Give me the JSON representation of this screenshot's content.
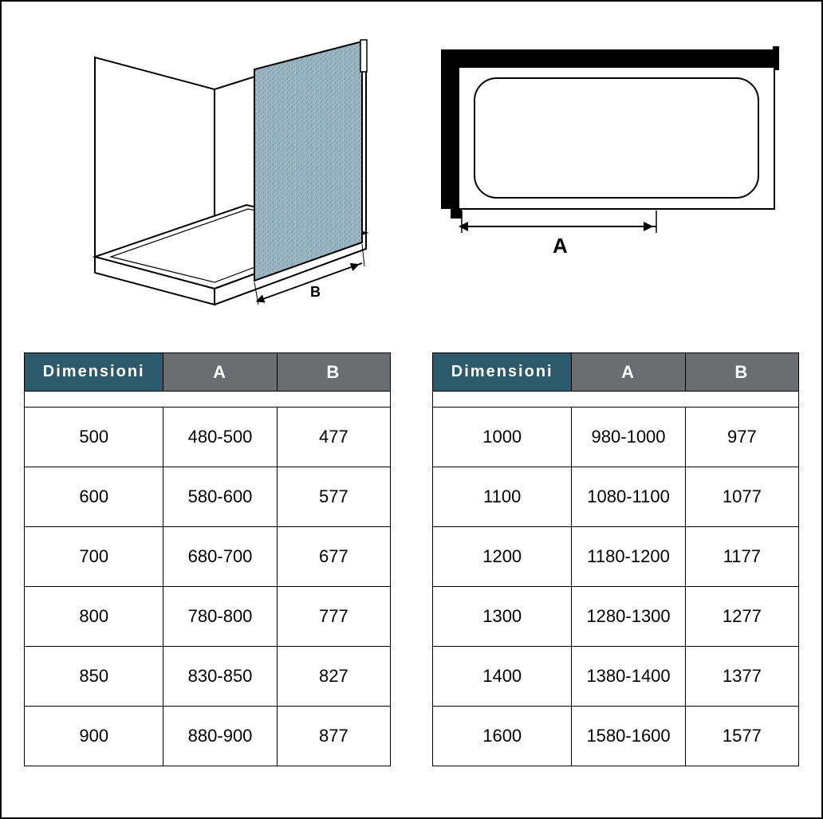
{
  "diagrams": {
    "left_label": "B",
    "right_label": "A"
  },
  "tables": {
    "header_dim_bg": "#2c5a6b",
    "header_col_bg": "#6b6d70",
    "header_text_color": "#ffffff",
    "border_color": "#000000",
    "cell_fontsize": 22,
    "header_fontsize": 22,
    "left": {
      "columns": [
        "Dimensioni",
        "A",
        "B"
      ],
      "rows": [
        [
          "500",
          "480-500",
          "477"
        ],
        [
          "600",
          "580-600",
          "577"
        ],
        [
          "700",
          "680-700",
          "677"
        ],
        [
          "800",
          "780-800",
          "777"
        ],
        [
          "850",
          "830-850",
          "827"
        ],
        [
          "900",
          "880-900",
          "877"
        ]
      ]
    },
    "right": {
      "columns": [
        "Dimensioni",
        "A",
        "B"
      ],
      "rows": [
        [
          "1000",
          "980-1000",
          "977"
        ],
        [
          "1100",
          "1080-1100",
          "1077"
        ],
        [
          "1200",
          "1180-1200",
          "1177"
        ],
        [
          "1300",
          "1280-1300",
          "1277"
        ],
        [
          "1400",
          "1380-1400",
          "1377"
        ],
        [
          "1600",
          "1580-1600",
          "1577"
        ]
      ]
    }
  }
}
